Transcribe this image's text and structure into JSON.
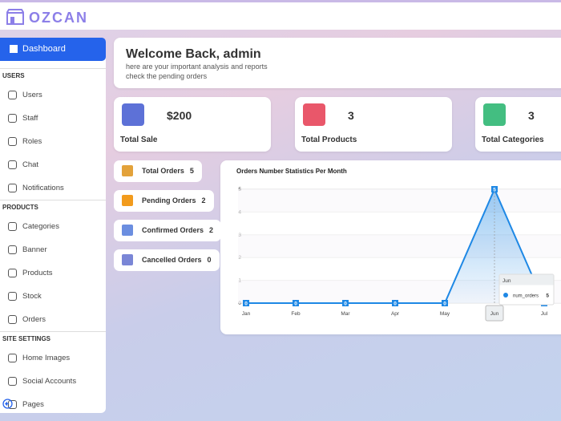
{
  "header": {
    "brand": "OZCAN"
  },
  "sidebar": {
    "active": "Dashboard",
    "sections": [
      {
        "title": "USERS",
        "items": [
          "Users",
          "Staff",
          "Roles",
          "Chat",
          "Notifications"
        ]
      },
      {
        "title": "PRODUCTS",
        "items": [
          "Categories",
          "Banner",
          "Products",
          "Stock",
          "Orders"
        ]
      },
      {
        "title": "SITE SETTINGS",
        "items": [
          "Home Images",
          "Social Accounts",
          "Pages"
        ]
      }
    ]
  },
  "welcome": {
    "title": "Welcome Back, admin",
    "lines": [
      "here are your important analysis and reports",
      "check the pending orders"
    ]
  },
  "stats": [
    {
      "value": "$200",
      "label": "Total Sale"
    },
    {
      "value": "3",
      "label": "Total Products"
    },
    {
      "value": "3",
      "label": "Total Categories"
    }
  ],
  "orders": [
    {
      "label": "Total Orders",
      "count": "5"
    },
    {
      "label": "Pending Orders",
      "count": "2"
    },
    {
      "label": "Confirmed Orders",
      "count": "2"
    },
    {
      "label": "Cancelled Orders",
      "count": "0"
    }
  ],
  "chart_data": {
    "type": "line",
    "title": "Orders Number Statistics Per Month",
    "categories": [
      "Jan",
      "Feb",
      "Mar",
      "Apr",
      "May",
      "Jun",
      "Jul"
    ],
    "series": [
      {
        "name": "num_orders",
        "color": "#1e88e5",
        "values": [
          0,
          0,
          0,
          0,
          0,
          5,
          0
        ]
      }
    ],
    "ylim": [
      0,
      5
    ],
    "yticks": [
      0,
      1,
      2,
      3,
      4,
      5
    ],
    "grid": true
  }
}
